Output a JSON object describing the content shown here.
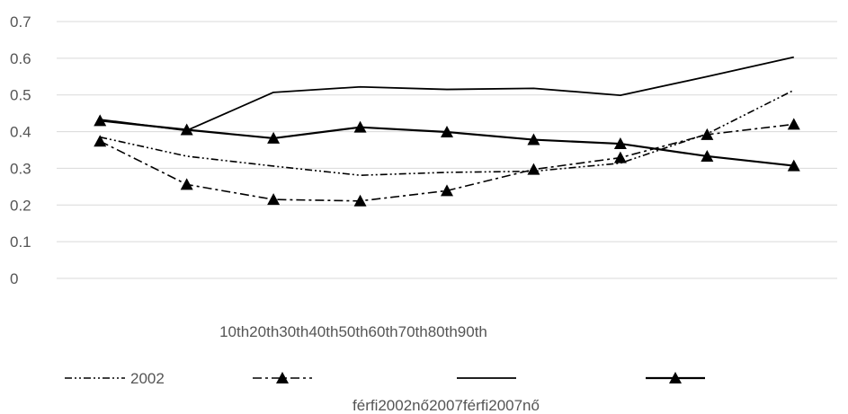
{
  "chart_data": {
    "type": "line",
    "categories": [
      "10th",
      "20th",
      "30th",
      "40th",
      "50th",
      "60th",
      "70th",
      "80th",
      "90th"
    ],
    "ylim": [
      0,
      0.7
    ],
    "yticks": [
      "0",
      "0.1",
      "0.2",
      "0.3",
      "0.4",
      "0.5",
      "0.6",
      "0.7"
    ],
    "grid": true,
    "legend_position": "bottom",
    "legend_visible_text": "2002",
    "legend_caption": "férfi2002nő2007férfi2007nő",
    "series": [
      {
        "style": "dash-dot-dot",
        "marker": "none",
        "values": [
          0.385,
          0.333,
          0.306,
          0.281,
          0.289,
          0.292,
          0.314,
          0.394,
          0.513
        ]
      },
      {
        "style": "dash-dot",
        "marker": "triangle",
        "values": [
          0.374,
          0.256,
          0.215,
          0.211,
          0.239,
          0.297,
          0.329,
          0.392,
          0.42
        ]
      },
      {
        "style": "solid",
        "marker": "none",
        "values": [
          0.433,
          0.403,
          0.507,
          0.522,
          0.515,
          0.518,
          0.499,
          0.55,
          0.603
        ]
      },
      {
        "style": "solid",
        "marker": "triangle",
        "values": [
          0.43,
          0.405,
          0.382,
          0.412,
          0.399,
          0.378,
          0.367,
          0.333,
          0.307
        ]
      }
    ]
  }
}
